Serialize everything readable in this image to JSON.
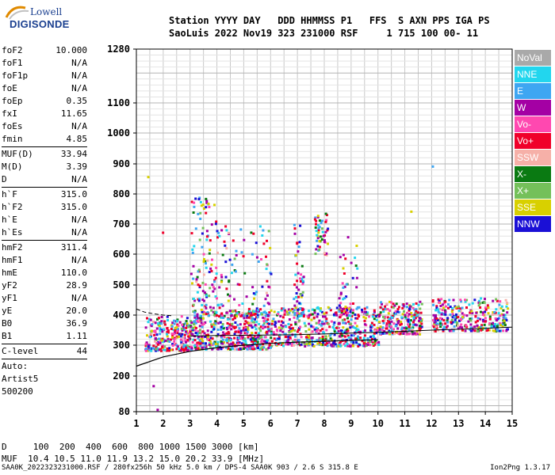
{
  "logo": {
    "line1": "Lowell",
    "line2": "DIGISONDE"
  },
  "header": {
    "line1": "Station YYYY DAY   DDD HHMMSS P1   FFS  S AXN PPS IGA PS",
    "line2": "SaoLuis 2022 Nov19 323 231000 RSF     1 715 100 00- 11"
  },
  "params": {
    "group1": [
      {
        "label": "foF2",
        "value": "10.000"
      },
      {
        "label": "foF1",
        "value": "N/A"
      },
      {
        "label": "foF1p",
        "value": "N/A"
      },
      {
        "label": "foE",
        "value": "N/A"
      },
      {
        "label": "foEp",
        "value": "0.35"
      },
      {
        "label": "fxI",
        "value": "11.65"
      },
      {
        "label": "foEs",
        "value": "N/A"
      },
      {
        "label": "fmin",
        "value": "4.85"
      }
    ],
    "group2": [
      {
        "label": "MUF(D)",
        "value": "33.94"
      },
      {
        "label": "M(D)",
        "value": "3.39"
      },
      {
        "label": "D",
        "value": "N/A"
      }
    ],
    "group3": [
      {
        "label": "h`F",
        "value": "315.0"
      },
      {
        "label": "h`F2",
        "value": "315.0"
      },
      {
        "label": "h`E",
        "value": "N/A"
      },
      {
        "label": "h`Es",
        "value": "N/A"
      }
    ],
    "group4": [
      {
        "label": "hmF2",
        "value": "311.4"
      },
      {
        "label": "hmF1",
        "value": "N/A"
      },
      {
        "label": "hmE",
        "value": "110.0"
      },
      {
        "label": "yF2",
        "value": "28.9"
      },
      {
        "label": "yF1",
        "value": "N/A"
      },
      {
        "label": "yE",
        "value": "20.0"
      },
      {
        "label": "B0",
        "value": "36.9"
      },
      {
        "label": "B1",
        "value": "1.11"
      }
    ],
    "clevel": {
      "label": "C-level",
      "value": "44"
    },
    "auto": [
      "Auto:",
      "Artist5",
      "500200"
    ]
  },
  "legend": [
    {
      "label": "NoVal",
      "color": "#a9a9a9"
    },
    {
      "label": "NNE",
      "color": "#22d6ee"
    },
    {
      "label": "E",
      "color": "#3ea6f2"
    },
    {
      "label": "W",
      "color": "#a400a4"
    },
    {
      "label": "Vo-",
      "color": "#ff48b0"
    },
    {
      "label": "Vo+",
      "color": "#f0002a"
    },
    {
      "label": "SSW",
      "color": "#f6b0a8"
    },
    {
      "label": "X-",
      "color": "#0a7a12"
    },
    {
      "label": "X+",
      "color": "#74c05a"
    },
    {
      "label": "SSE",
      "color": "#d8d000"
    },
    {
      "label": "NNW",
      "color": "#1a10d6"
    }
  ],
  "bottom": {
    "line1": "D     100  200  400  600  800 1000 1500 3000 [km]",
    "line2": "MUF  10.4 10.5 11.0 11.9 13.2 15.0 20.2 33.9 [MHz]"
  },
  "footer": "SAA0K_2022323231000.RSF / 280fx256h 50 kHz 5.0 km / DPS-4 SAA0K 903 / 2.6 S 315.8 E",
  "version": "Ion2Png 1.3.17",
  "chart_data": {
    "type": "scatter",
    "xlim": [
      1,
      15
    ],
    "ylim": [
      80,
      1280
    ],
    "xticks": [
      1,
      2,
      3,
      4,
      5,
      6,
      7,
      8,
      9,
      10,
      11,
      12,
      13,
      14,
      15
    ],
    "yticks": [
      80,
      200,
      300,
      400,
      500,
      600,
      700,
      800,
      900,
      1000,
      1100,
      1280
    ],
    "grid": true,
    "yscale": "nonlinear",
    "clusters": [
      {
        "x": [
          1.3,
          3.0
        ],
        "y": [
          285,
          400
        ],
        "n": 260
      },
      {
        "x": [
          3.0,
          6.0
        ],
        "y": [
          290,
          420
        ],
        "n": 520
      },
      {
        "x": [
          6.0,
          10.0
        ],
        "y": [
          300,
          430
        ],
        "n": 520
      },
      {
        "x": [
          10.0,
          11.6
        ],
        "y": [
          340,
          450
        ],
        "n": 240
      },
      {
        "x": [
          12.0,
          14.8
        ],
        "y": [
          350,
          460
        ],
        "n": 300
      },
      {
        "x": [
          3.0,
          4.0
        ],
        "y": [
          420,
          800
        ],
        "n": 110
      },
      {
        "x": [
          4.0,
          6.0
        ],
        "y": [
          400,
          700
        ],
        "n": 110
      },
      {
        "x": [
          6.8,
          7.2
        ],
        "y": [
          400,
          720
        ],
        "n": 50
      },
      {
        "x": [
          7.6,
          8.1
        ],
        "y": [
          600,
          740
        ],
        "n": 50
      },
      {
        "x": [
          8.5,
          9.2
        ],
        "y": [
          400,
          700
        ],
        "n": 45
      }
    ],
    "isolated_points": [
      {
        "x": 1.4,
        "y": 860,
        "color": "#d8d000"
      },
      {
        "x": 12.0,
        "y": 895,
        "color": "#3ea6f2"
      },
      {
        "x": 1.6,
        "y": 170,
        "color": "#a400a4"
      },
      {
        "x": 1.75,
        "y": 90,
        "color": "#a400a4"
      },
      {
        "x": 11.2,
        "y": 745,
        "color": "#d8d000"
      },
      {
        "x": 1.95,
        "y": 675,
        "color": "#f0002a"
      }
    ],
    "profile_curve": {
      "x": [
        1,
        2,
        3,
        4,
        5,
        6,
        7,
        8,
        9,
        10
      ],
      "y": [
        232,
        262,
        280,
        292,
        300,
        306,
        310,
        313,
        316,
        318
      ]
    },
    "trace_curve": {
      "x": [
        3,
        4,
        5,
        6,
        7,
        8,
        9,
        10,
        11,
        12,
        13,
        14,
        15
      ],
      "y": [
        330,
        332,
        333,
        334,
        335,
        337,
        340,
        343,
        346,
        350,
        353,
        356,
        360
      ]
    },
    "dashed_curve": {
      "x": [
        1.0,
        1.3,
        1.6,
        2.0,
        2.3
      ],
      "y": [
        420,
        410,
        405,
        400,
        398
      ]
    }
  }
}
